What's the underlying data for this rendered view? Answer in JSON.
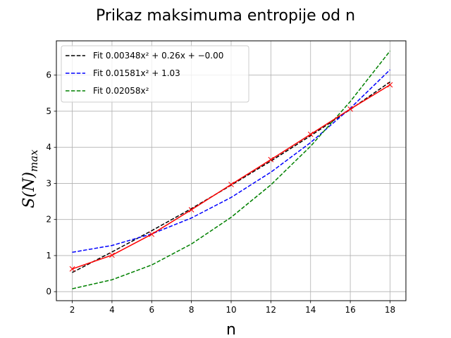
{
  "chart_data": {
    "type": "line",
    "title": "Prikaz maksimuma entropije od n",
    "xlabel": "n",
    "ylabel": "S(N)",
    "ylabel_sub": "max",
    "xlim": [
      1.2,
      18.8
    ],
    "ylim": [
      -0.25,
      6.95
    ],
    "xticks": [
      2,
      4,
      6,
      8,
      10,
      12,
      14,
      16,
      18
    ],
    "yticks": [
      0,
      1,
      2,
      3,
      4,
      5,
      6
    ],
    "grid": true,
    "legend_position": "top-left",
    "x": [
      2,
      4,
      6,
      8,
      10,
      12,
      14,
      16,
      18
    ],
    "series": [
      {
        "name": "Fit 0.00348x² + 0.26x + −0.00",
        "color": "#000000",
        "style": "dashed",
        "values": [
          0.53,
          1.1,
          1.69,
          2.3,
          2.95,
          3.62,
          4.32,
          5.05,
          5.81
        ]
      },
      {
        "name": "Fit 0.01581x² + 1.03",
        "color": "#0000ff",
        "style": "dashed",
        "values": [
          1.09,
          1.28,
          1.6,
          2.04,
          2.61,
          3.31,
          4.13,
          5.08,
          6.15
        ]
      },
      {
        "name": "Fit 0.02058x²",
        "color": "#008000",
        "style": "dashed",
        "values": [
          0.08,
          0.33,
          0.74,
          1.32,
          2.06,
          2.96,
          4.03,
          5.27,
          6.67
        ]
      },
      {
        "color": "#ff0000",
        "style": "solid",
        "marker": "x",
        "values": [
          0.63,
          1.01,
          1.59,
          2.27,
          2.97,
          3.66,
          4.36,
          5.06,
          5.73
        ]
      }
    ]
  }
}
